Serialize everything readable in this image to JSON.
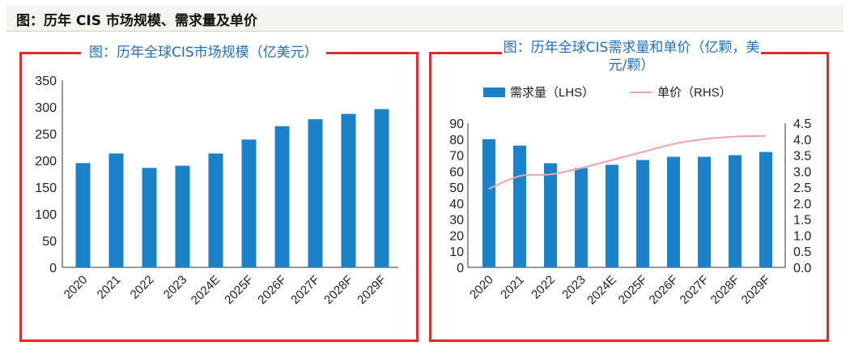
{
  "header": {
    "title": "图：历年 CIS 市场规模、需求量及单价"
  },
  "chart_data": [
    {
      "type": "bar",
      "title": "图：历年全球CIS市场规模（亿美元）",
      "categories": [
        "2020",
        "2021",
        "2022",
        "2023",
        "2024E",
        "2025F",
        "2026F",
        "2027F",
        "2028F",
        "2029F"
      ],
      "values": [
        195,
        213,
        186,
        190,
        213,
        239,
        264,
        277,
        287,
        296
      ],
      "ylim": [
        0,
        350
      ],
      "yticks": [
        "350",
        "300",
        "250",
        "200",
        "150",
        "100",
        "50",
        "0"
      ],
      "bar_color": "#1a82c9",
      "frame_color": "#e52a2a"
    },
    {
      "type": "bar+line",
      "title": "图：历年全球CIS需求量和单价（亿颗，美元/颗）",
      "categories": [
        "2020",
        "2021",
        "2022",
        "2023",
        "2024E",
        "2025F",
        "2026F",
        "2027F",
        "2028F",
        "2029F"
      ],
      "series": [
        {
          "name": "需求量（LHS）",
          "type": "bar",
          "axis": "left",
          "values": [
            80,
            76,
            65,
            62,
            64,
            67,
            69,
            69,
            70,
            72
          ],
          "color": "#1a82c9"
        },
        {
          "name": "单价（RHS）",
          "type": "line",
          "axis": "right",
          "values": [
            2.45,
            2.85,
            2.9,
            3.1,
            3.35,
            3.6,
            3.85,
            4.0,
            4.08,
            4.1
          ],
          "color": "#f0a3a8"
        }
      ],
      "ylim_left": [
        0,
        90
      ],
      "ylim_right": [
        0,
        4.5
      ],
      "yticks_left": [
        "90",
        "80",
        "70",
        "60",
        "50",
        "40",
        "30",
        "20",
        "10",
        "0"
      ],
      "yticks_right": [
        "4.5",
        "4.0",
        "3.5",
        "3.0",
        "2.5",
        "2.0",
        "1.5",
        "1.0",
        "0.5",
        "0.0"
      ],
      "legend_position": "top",
      "frame_color": "#e52a2a"
    }
  ]
}
